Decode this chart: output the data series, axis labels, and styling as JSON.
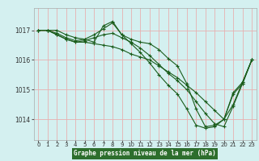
{
  "title": "Graphe pression niveau de la mer (hPa)",
  "bg_color": "#c8e8e8",
  "plot_bg_color": "#d4f0f0",
  "label_bg_color": "#2d6e2d",
  "grid_color": "#e8b0b0",
  "line_color": "#1a5c1a",
  "x_ticks": [
    0,
    1,
    2,
    3,
    4,
    5,
    6,
    7,
    8,
    9,
    10,
    11,
    12,
    13,
    14,
    15,
    16,
    17,
    18,
    19,
    20,
    21,
    22,
    23
  ],
  "y_ticks": [
    1014,
    1015,
    1016,
    1017
  ],
  "ylim": [
    1013.3,
    1017.75
  ],
  "xlim": [
    -0.5,
    23.5
  ],
  "series": [
    [
      1017.0,
      1017.0,
      1017.0,
      1016.85,
      1016.75,
      1016.7,
      1016.6,
      1017.15,
      1017.3,
      1016.85,
      1016.7,
      1016.6,
      1016.55,
      1016.35,
      1016.05,
      1015.8,
      1015.2,
      1014.35,
      1013.75,
      1013.8,
      1014.0,
      1014.9,
      1015.25,
      1016.0
    ],
    [
      1017.0,
      1017.0,
      1016.85,
      1016.7,
      1016.6,
      1016.65,
      1016.75,
      1016.85,
      1016.9,
      1016.75,
      1016.6,
      1016.4,
      1016.15,
      1015.85,
      1015.55,
      1015.3,
      1015.0,
      1014.6,
      1014.2,
      1013.85,
      1013.75,
      1014.45,
      1015.2,
      1016.0
    ],
    [
      1017.0,
      1017.0,
      1016.9,
      1016.75,
      1016.65,
      1016.7,
      1016.85,
      1017.05,
      1017.25,
      1016.85,
      1016.55,
      1016.25,
      1015.9,
      1015.5,
      1015.15,
      1014.85,
      1014.35,
      1013.8,
      1013.7,
      1013.75,
      1014.0,
      1014.85,
      1015.2,
      1016.0
    ],
    [
      1017.0,
      1017.0,
      1016.85,
      1016.7,
      1016.6,
      1016.6,
      1016.55,
      1016.5,
      1016.45,
      1016.35,
      1016.2,
      1016.1,
      1016.0,
      1015.8,
      1015.6,
      1015.4,
      1015.15,
      1014.9,
      1014.6,
      1014.3,
      1014.0,
      1014.5,
      1015.25,
      1016.0
    ]
  ]
}
